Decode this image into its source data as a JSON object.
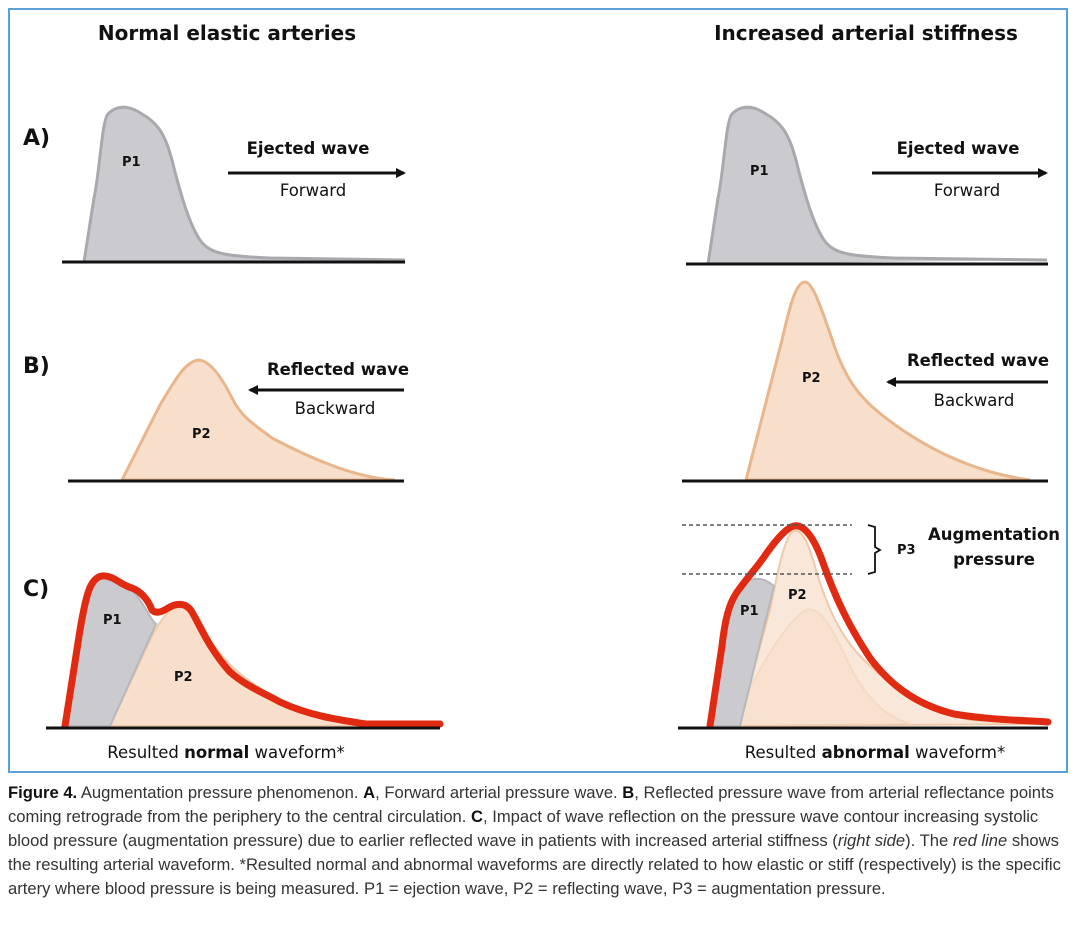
{
  "columns": {
    "left_heading": "Normal elastic arteries",
    "right_heading": "Increased arterial stiffness"
  },
  "rows": {
    "a": "A)",
    "b": "B)",
    "c": "C)"
  },
  "row_a": {
    "wave_title": "Ejected wave",
    "direction": "Forward",
    "peak": "P1"
  },
  "row_b": {
    "wave_title": "Reflected wave",
    "direction": "Backward",
    "peak": "P2"
  },
  "row_c": {
    "p1": "P1",
    "p2": "P2",
    "p3": "P3",
    "aug_line1": "Augmentation",
    "aug_line2": "pressure",
    "left_result_pre": "Resulted ",
    "left_result_bold": "normal",
    "left_result_post": " waveform*",
    "right_result_pre": "Resulted ",
    "right_result_bold": "abnormal",
    "right_result_post": " waveform*"
  },
  "colors": {
    "forward_fill": "#cbcbcf",
    "forward_stroke": "#a9a9ad",
    "reflected_fill": "#f7dfcc",
    "reflected_stroke": "#e9b58a",
    "resultant": "#e02a12",
    "border": "#5aa0d8"
  },
  "caption": {
    "label": "Figure 4.",
    "t1": " Augmentation pressure phenomenon. ",
    "a": "A",
    "t2": ", Forward arterial pressure wave. ",
    "b": "B",
    "t3": ", Reflected pressure wave from arterial reflectance points coming retrograde from the periphery to the central circulation. ",
    "c": "C",
    "t4": ", Impact of wave reflection on the pressure wave contour increasing systolic blood pressure (augmentation pressure) due to earlier reflected wave in patients with increased arterial stiffness (",
    "i1": "right side",
    "t5": "). The ",
    "i2": "red line",
    "t6": " shows the resulting arterial waveform. *Resulted normal and abnormal waveforms are directly related to how elastic or stiff (respectively) is the specific artery where blood pressure is being measured. P1 = ejection wave, P2 = reflecting wave, P3 = augmentation pressure."
  }
}
